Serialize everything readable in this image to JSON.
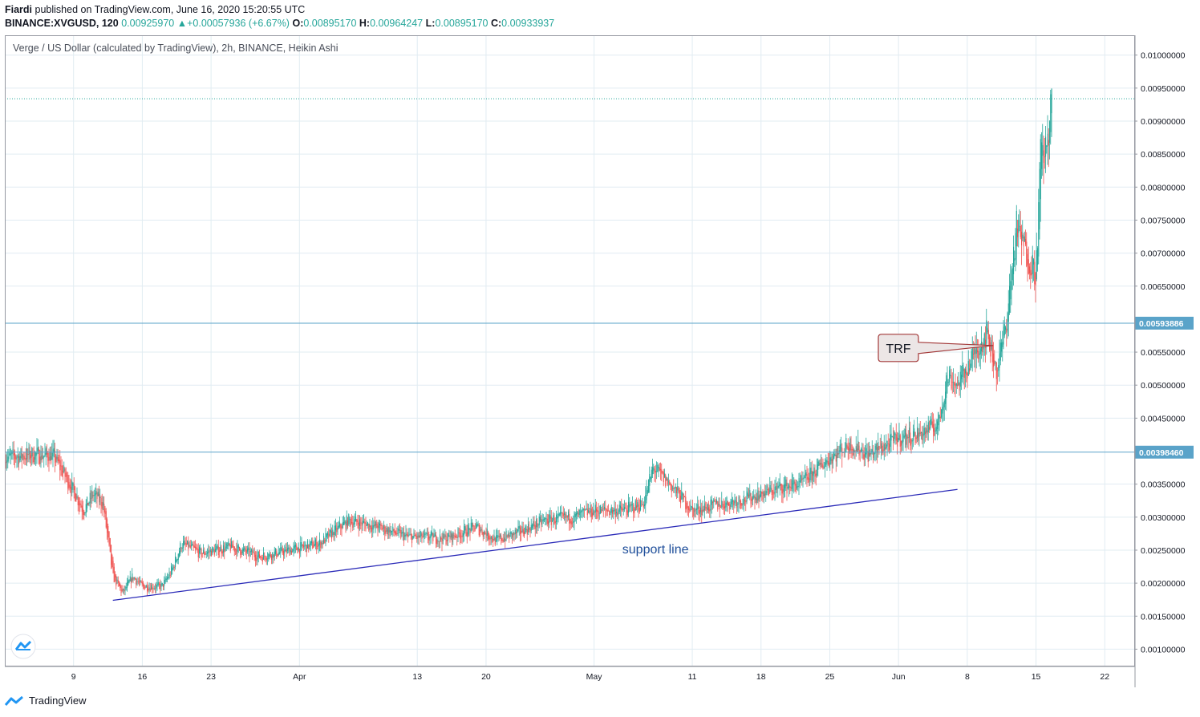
{
  "header": {
    "author": "Fiardi",
    "published_text": " published on TradingView.com, June 16, 2020 15:20:55 UTC",
    "symbol": "BINANCE:XVGUSD, 120",
    "last": "0.00925970",
    "change_arrow": "▲",
    "change": "+0.00057936 (+6.67%)",
    "o_label": "O:",
    "o_val": "0.00895170",
    "h_label": "H:",
    "h_val": "0.00964247",
    "l_label": "L:",
    "l_val": "0.00895170",
    "c_label": "C:",
    "c_val": "0.00933937"
  },
  "footer": {
    "brand": "TradingView"
  },
  "colors": {
    "up": "#26a69a",
    "down": "#ef5350",
    "grid": "#e1ecf2",
    "hline": "#5aa3c9",
    "support": "#2b2bb8",
    "dotted": "#26a69a",
    "badge": "#5aa3c9"
  },
  "chart_data": {
    "type": "candlestick",
    "title": "Verge / US Dollar (calculated by TradingView), 2h, BINANCE, Heikin Ashi",
    "ylim": [
      0.00075,
      0.0103
    ],
    "y_ticks": [
      "0.01000000",
      "0.00950000",
      "0.00900000",
      "0.00850000",
      "0.00800000",
      "0.00750000",
      "0.00700000",
      "0.00650000",
      "0.00550000",
      "0.00500000",
      "0.00450000",
      "0.00350000",
      "0.00300000",
      "0.00250000",
      "0.00200000",
      "0.00150000",
      "0.00100000"
    ],
    "x_ticks": [
      "9",
      "16",
      "23",
      "Apr",
      "13",
      "20",
      "May",
      "11",
      "18",
      "25",
      "Jun",
      "8",
      "15",
      "22"
    ],
    "price_path": [
      [
        "2020-03-02",
        0.0039
      ],
      [
        "2020-03-05",
        0.00395
      ],
      [
        "2020-03-07",
        0.00392
      ],
      [
        "2020-03-09",
        0.0034
      ],
      [
        "2020-03-10",
        0.0031
      ],
      [
        "2020-03-11",
        0.00335
      ],
      [
        "2020-03-12",
        0.0032
      ],
      [
        "2020-03-13",
        0.0021
      ],
      [
        "2020-03-14",
        0.00185
      ],
      [
        "2020-03-15",
        0.0021
      ],
      [
        "2020-03-16",
        0.00195
      ],
      [
        "2020-03-18",
        0.00195
      ],
      [
        "2020-03-19",
        0.0022
      ],
      [
        "2020-03-20",
        0.0026
      ],
      [
        "2020-03-22",
        0.00245
      ],
      [
        "2020-03-25",
        0.00255
      ],
      [
        "2020-03-28",
        0.0024
      ],
      [
        "2020-03-31",
        0.0025
      ],
      [
        "2020-04-03",
        0.0026
      ],
      [
        "2020-04-06",
        0.00295
      ],
      [
        "2020-04-09",
        0.00285
      ],
      [
        "2020-04-12",
        0.0027
      ],
      [
        "2020-04-16",
        0.00268
      ],
      [
        "2020-04-19",
        0.00285
      ],
      [
        "2020-04-21",
        0.00265
      ],
      [
        "2020-04-23",
        0.00275
      ],
      [
        "2020-04-26",
        0.00295
      ],
      [
        "2020-04-29",
        0.003
      ],
      [
        "2020-05-01",
        0.0031
      ],
      [
        "2020-05-04",
        0.0031
      ],
      [
        "2020-05-06",
        0.0032
      ],
      [
        "2020-05-07",
        0.00375
      ],
      [
        "2020-05-09",
        0.00345
      ],
      [
        "2020-05-11",
        0.0031
      ],
      [
        "2020-05-14",
        0.0032
      ],
      [
        "2020-05-17",
        0.0033
      ],
      [
        "2020-05-20",
        0.00345
      ],
      [
        "2020-05-22",
        0.0035
      ],
      [
        "2020-05-25",
        0.0039
      ],
      [
        "2020-05-27",
        0.0041
      ],
      [
        "2020-05-29",
        0.00395
      ],
      [
        "2020-06-01",
        0.0042
      ],
      [
        "2020-06-03",
        0.00425
      ],
      [
        "2020-06-05",
        0.0044
      ],
      [
        "2020-06-06",
        0.00515
      ],
      [
        "2020-06-07",
        0.005
      ],
      [
        "2020-06-09",
        0.00555
      ],
      [
        "2020-06-10",
        0.0058
      ],
      [
        "2020-06-11",
        0.0052
      ],
      [
        "2020-06-12",
        0.006
      ],
      [
        "2020-06-13",
        0.0074
      ],
      [
        "2020-06-14",
        0.007
      ],
      [
        "2020-06-15",
        0.0067
      ],
      [
        "2020-06-15T12",
        0.0086
      ],
      [
        "2020-06-16",
        0.0085
      ],
      [
        "2020-06-16T15",
        0.00934
      ]
    ],
    "price_lines": [
      {
        "label": "0.00593886",
        "value": 0.00593886
      },
      {
        "label": "0.00398460",
        "value": 0.0039846
      }
    ],
    "last_price_line": 0.00933937,
    "support_line": {
      "label": "support line",
      "from": [
        "2020-03-13",
        0.00174
      ],
      "to": [
        "2020-06-07",
        0.00342
      ]
    },
    "callout": {
      "label": "TRF",
      "points_to": [
        "2020-06-09",
        0.0056
      ]
    }
  }
}
